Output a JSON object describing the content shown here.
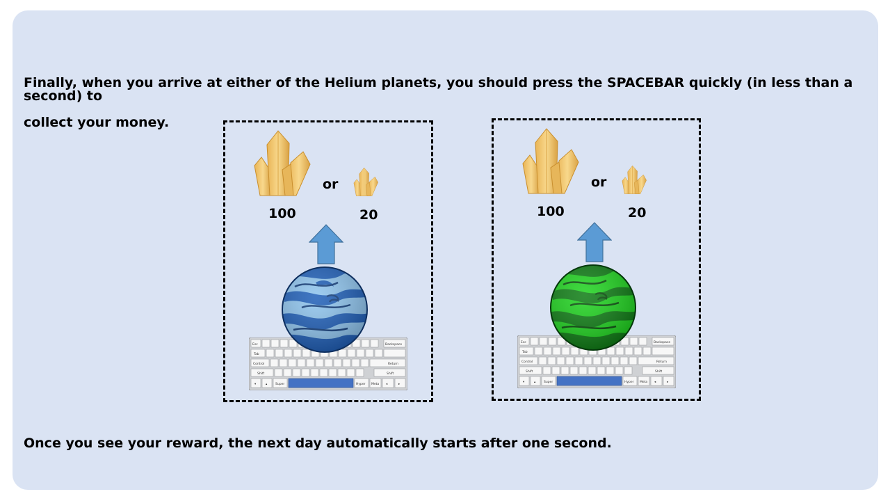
{
  "instructions": {
    "line1": "Finally, when you arrive at either of the Helium planets, you should press the SPACEBAR quickly (in less than a second) to",
    "line2": "collect your money.",
    "line3": "Once you see your reward, the next day automatically starts after one second."
  },
  "panels": [
    {
      "planet_color": "blue",
      "reward_high": "100",
      "reward_low": "20",
      "or_label": "or"
    },
    {
      "planet_color": "green",
      "reward_high": "100",
      "reward_low": "20",
      "or_label": "or"
    }
  ],
  "keyboard_keys": {
    "esc": "Esc",
    "backspace": "Backspace",
    "tab": "Tab",
    "control": "Control",
    "return": "Return",
    "shift_left": "Shift",
    "shift_right": "Shift",
    "super": "Super",
    "hyper": "Hyper",
    "meta": "Meta"
  },
  "colors": {
    "background": "#dae3f3",
    "arrow": "#5b9bd5",
    "crystal": "#f2c46d",
    "planet_blue": "#2e73d9",
    "planet_green": "#1ed31e",
    "spacebar": "#4472c4"
  },
  "icons": [
    "crystal-icon",
    "up-arrow-icon",
    "planet-icon",
    "keyboard-icon"
  ]
}
